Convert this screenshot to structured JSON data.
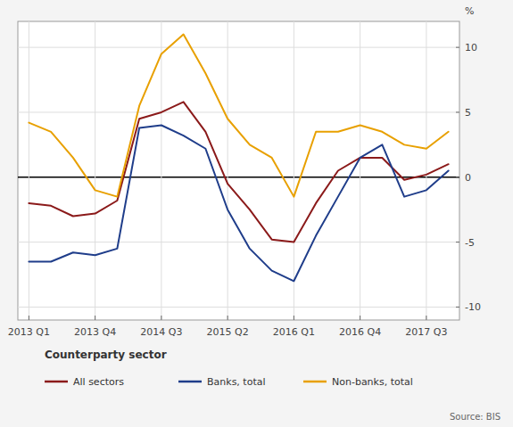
{
  "chart_data": {
    "type": "line",
    "categories": [
      "2013 Q1",
      null,
      null,
      "2013 Q4",
      null,
      null,
      "2014 Q3",
      null,
      null,
      "2015 Q2",
      null,
      null,
      "2016 Q1",
      null,
      null,
      "2016 Q4",
      null,
      null,
      "2017 Q3",
      null
    ],
    "series": [
      {
        "name": "All sectors",
        "color": "#8b1a1a",
        "values": [
          -2.0,
          -2.2,
          -3.0,
          -2.8,
          -1.8,
          4.5,
          5.0,
          5.8,
          3.5,
          -0.5,
          -2.5,
          -4.8,
          -5.0,
          -2.0,
          0.5,
          1.5,
          1.5,
          -0.2,
          0.2,
          1.0
        ]
      },
      {
        "name": "Banks, total",
        "color": "#1f3d8a",
        "values": [
          -6.5,
          -6.5,
          -5.8,
          -6.0,
          -5.5,
          3.8,
          4.0,
          3.2,
          2.2,
          -2.5,
          -5.5,
          -7.2,
          -8.0,
          -4.5,
          -1.5,
          1.5,
          2.5,
          -1.5,
          -1.0,
          0.5
        ]
      },
      {
        "name": "Non-banks, total",
        "color": "#e8a000",
        "values": [
          4.2,
          3.5,
          1.5,
          -1.0,
          -1.5,
          5.5,
          9.5,
          11.0,
          8.0,
          4.5,
          2.5,
          1.5,
          -1.5,
          3.5,
          3.5,
          4.0,
          3.5,
          2.5,
          2.2,
          3.5
        ]
      }
    ],
    "y_label": "%",
    "ylim": [
      -11,
      12
    ],
    "yticks": [
      -10,
      -5,
      0,
      5,
      10
    ],
    "grid": true,
    "legend": "bottom",
    "legend_title": "Counterparty sector",
    "annotations": [
      "Source: BIS"
    ]
  }
}
